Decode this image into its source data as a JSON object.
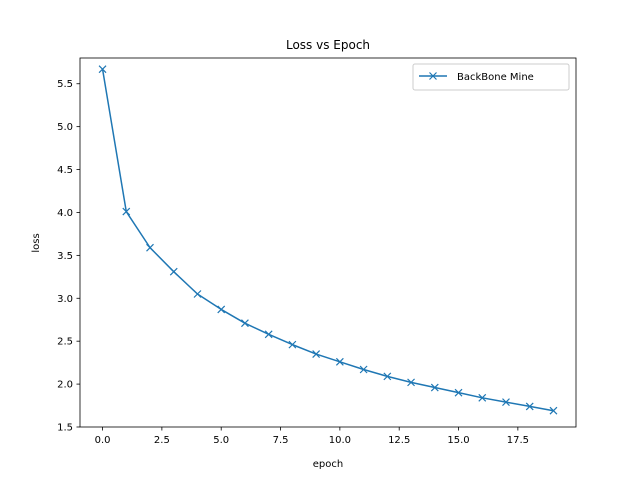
{
  "chart_data": {
    "type": "line",
    "title": "Loss vs Epoch",
    "xlabel": "epoch",
    "ylabel": "loss",
    "xlim": [
      -0.95,
      19.95
    ],
    "ylim": [
      1.5,
      5.8
    ],
    "xticks": [
      0,
      2.5,
      5,
      7.5,
      10,
      12.5,
      15,
      17.5
    ],
    "xtick_labels": [
      "0.0",
      "2.5",
      "5.0",
      "7.5",
      "10.0",
      "12.5",
      "15.0",
      "17.5"
    ],
    "yticks": [
      1.5,
      2.0,
      2.5,
      3.0,
      3.5,
      4.0,
      4.5,
      5.0,
      5.5
    ],
    "ytick_labels": [
      "1.5",
      "2.0",
      "2.5",
      "3.0",
      "3.5",
      "4.0",
      "4.5",
      "5.0",
      "5.5"
    ],
    "grid": false,
    "legend_position": "top-right",
    "series": [
      {
        "name": "BackBone Mine",
        "color": "#1f77b4",
        "marker": "x",
        "x": [
          0,
          1,
          2,
          3,
          4,
          5,
          6,
          7,
          8,
          9,
          10,
          11,
          12,
          13,
          14,
          15,
          16,
          17,
          18,
          19
        ],
        "y": [
          5.67,
          4.01,
          3.59,
          3.31,
          3.05,
          2.87,
          2.71,
          2.58,
          2.46,
          2.35,
          2.26,
          2.17,
          2.09,
          2.02,
          1.96,
          1.9,
          1.84,
          1.79,
          1.74,
          1.69
        ]
      }
    ]
  }
}
